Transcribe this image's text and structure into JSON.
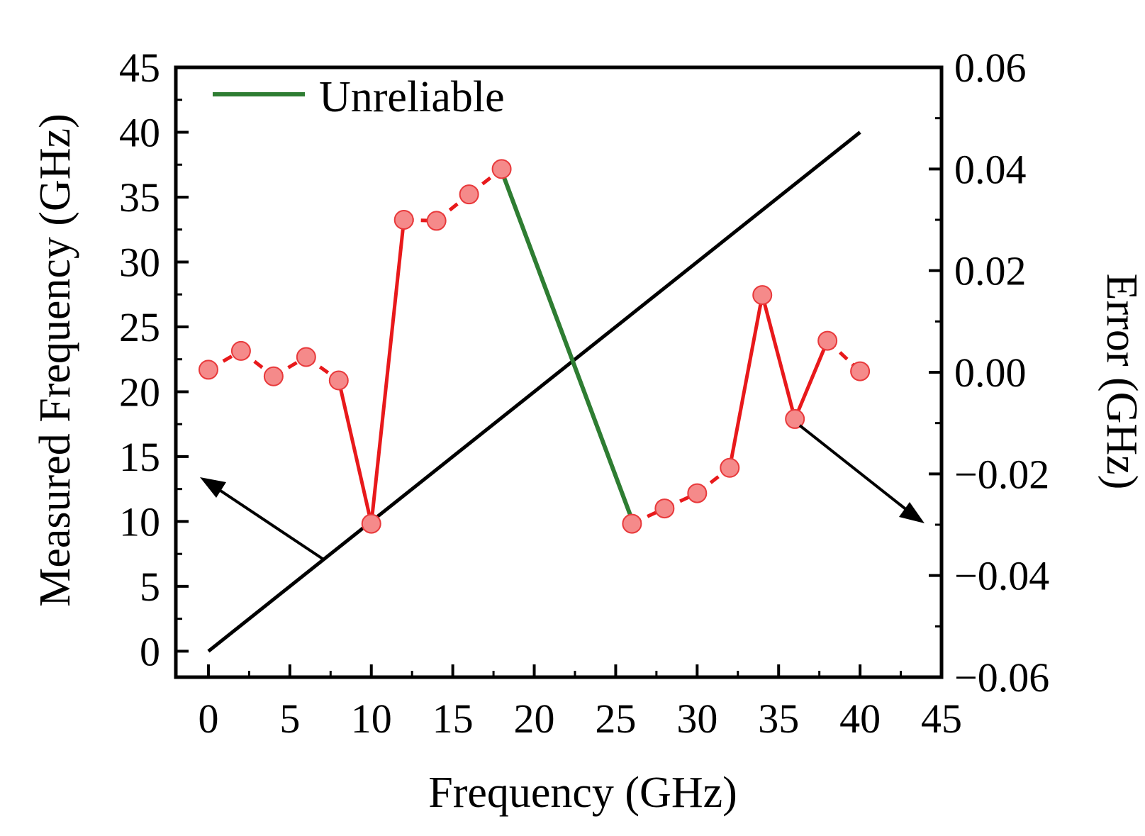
{
  "chart_data": {
    "type": "line",
    "title": "",
    "xlabel": "Frequency (GHz)",
    "ylabel_left": "Measured Frequency (GHz)",
    "ylabel_right": "Error (GHz)",
    "xlim": [
      -2,
      45
    ],
    "ylim_left": [
      -2,
      45
    ],
    "ylim_right": [
      -0.06,
      0.06
    ],
    "x_ticks": [
      0,
      5,
      10,
      15,
      20,
      25,
      30,
      35,
      40,
      45
    ],
    "x_tick_labels": [
      "0",
      "5",
      "10",
      "15",
      "20",
      "25",
      "30",
      "35",
      "40",
      "45"
    ],
    "y_left_ticks": [
      0,
      5,
      10,
      15,
      20,
      25,
      30,
      35,
      40,
      45
    ],
    "y_left_tick_labels": [
      "0",
      "5",
      "10",
      "15",
      "20",
      "25",
      "30",
      "35",
      "40",
      "45"
    ],
    "y_right_ticks": [
      -0.06,
      -0.04,
      -0.02,
      0.0,
      0.02,
      0.04,
      0.06
    ],
    "y_right_tick_labels": [
      "−0.06",
      "−0.04",
      "−0.02",
      "0.00",
      "0.02",
      "0.04",
      "0.06"
    ],
    "legend": {
      "position": "top-left",
      "entries": [
        {
          "label": "Unreliable",
          "color": "#2e7d32"
        }
      ]
    },
    "series": [
      {
        "name": "Measured Frequency",
        "axis": "left",
        "color": "#000000",
        "x": [
          0,
          40
        ],
        "values": [
          0,
          40
        ]
      },
      {
        "name": "Error",
        "axis": "right",
        "color": "#e8191b",
        "marker_color": "#f58a8a",
        "x": [
          0,
          2,
          4,
          6,
          8,
          10,
          12,
          14,
          16,
          18,
          26,
          28,
          30,
          32,
          34,
          36,
          38,
          40
        ],
        "values": [
          0.0005,
          0.0042,
          -0.0008,
          0.003,
          -0.0016,
          -0.0298,
          0.03,
          0.0298,
          0.035,
          0.04,
          -0.0298,
          -0.0268,
          -0.0238,
          -0.0188,
          0.0152,
          -0.0092,
          0.0062,
          0.0002
        ]
      },
      {
        "name": "Unreliable",
        "axis": "right",
        "color": "#2e7d32",
        "x": [
          18,
          26
        ],
        "values": [
          0.0396,
          -0.029
        ]
      }
    ],
    "colors": {
      "axis": "#000000",
      "error_line": "#e8191b",
      "marker_fill": "#f58a8a",
      "marker_edge": "#e8393b",
      "unreliable": "#2e7d32"
    }
  }
}
